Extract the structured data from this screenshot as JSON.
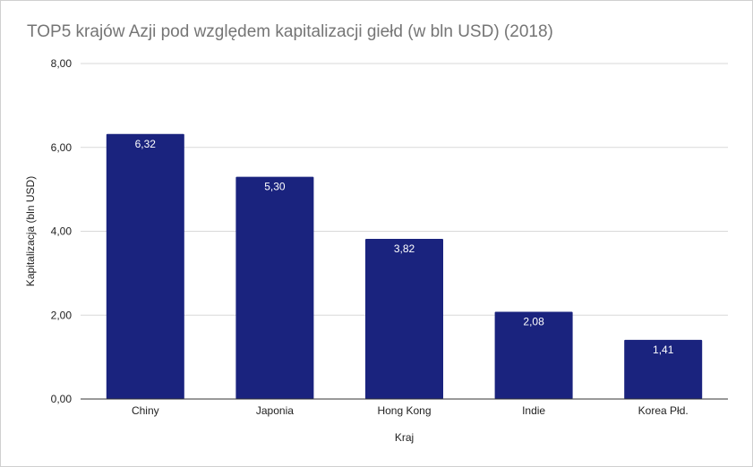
{
  "chart_data": {
    "type": "bar",
    "title": "TOP5 krajów Azji pod względem kapitalizacji giełd (w bln USD) (2018)",
    "xlabel": "Kraj",
    "ylabel": "Kapitalizacja (bln USD)",
    "categories": [
      "Chiny",
      "Japonia",
      "Hong Kong",
      "Indie",
      "Korea Płd."
    ],
    "values": [
      6.32,
      5.3,
      3.82,
      2.08,
      1.41
    ],
    "value_labels": [
      "6,32",
      "5,30",
      "3,82",
      "2,08",
      "1,41"
    ],
    "yticks": [
      "0,00",
      "2,00",
      "4,00",
      "6,00",
      "8,00"
    ],
    "ylim": [
      0,
      8
    ],
    "grid": true,
    "legend": "none",
    "bar_color": "#1a237e"
  }
}
